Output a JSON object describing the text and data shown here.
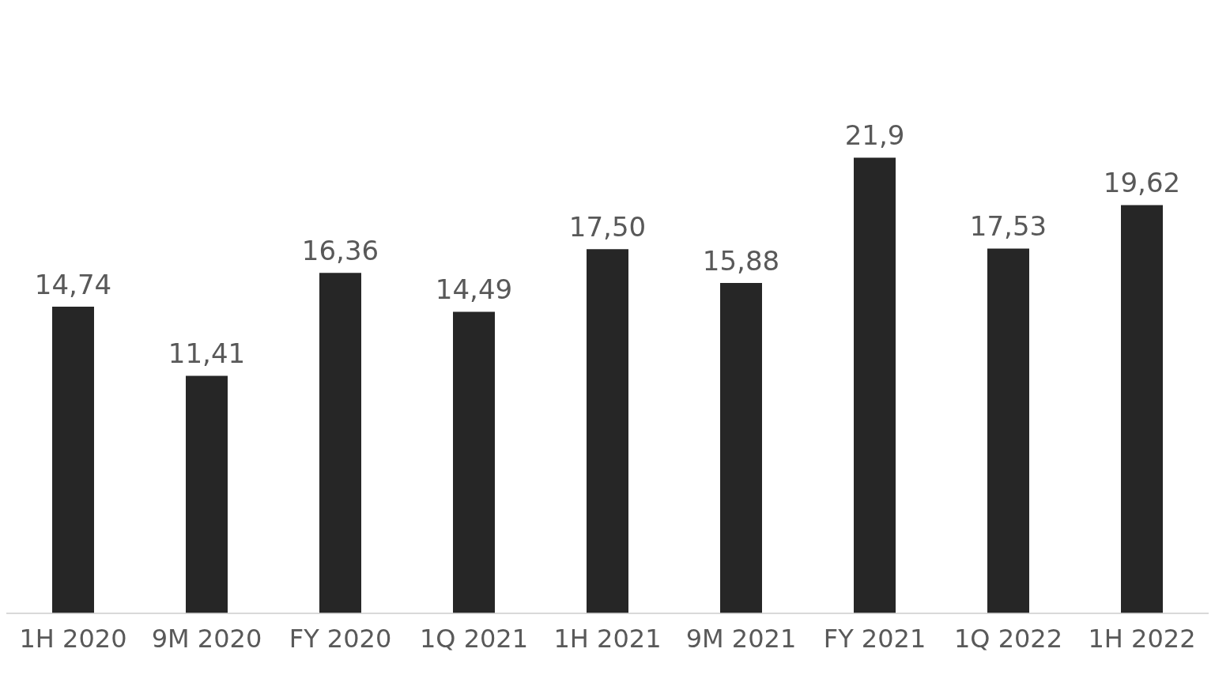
{
  "chart_data": {
    "type": "bar",
    "categories": [
      "1H 2020",
      "9M 2020",
      "FY 2020",
      "1Q 2021",
      "1H 2021",
      "9M 2021",
      "FY 2021",
      "1Q 2022",
      "1H 2022"
    ],
    "values": [
      14.74,
      11.41,
      16.36,
      14.49,
      17.5,
      15.88,
      21.9,
      17.53,
      19.62
    ],
    "value_labels": [
      "14,74",
      "11,41",
      "16,36",
      "14,49",
      "17,50",
      "15,88",
      "21,9",
      "17,53",
      "19,62"
    ],
    "color": "#262626",
    "grid": false,
    "legend": false,
    "tick_labels": "x"
  }
}
